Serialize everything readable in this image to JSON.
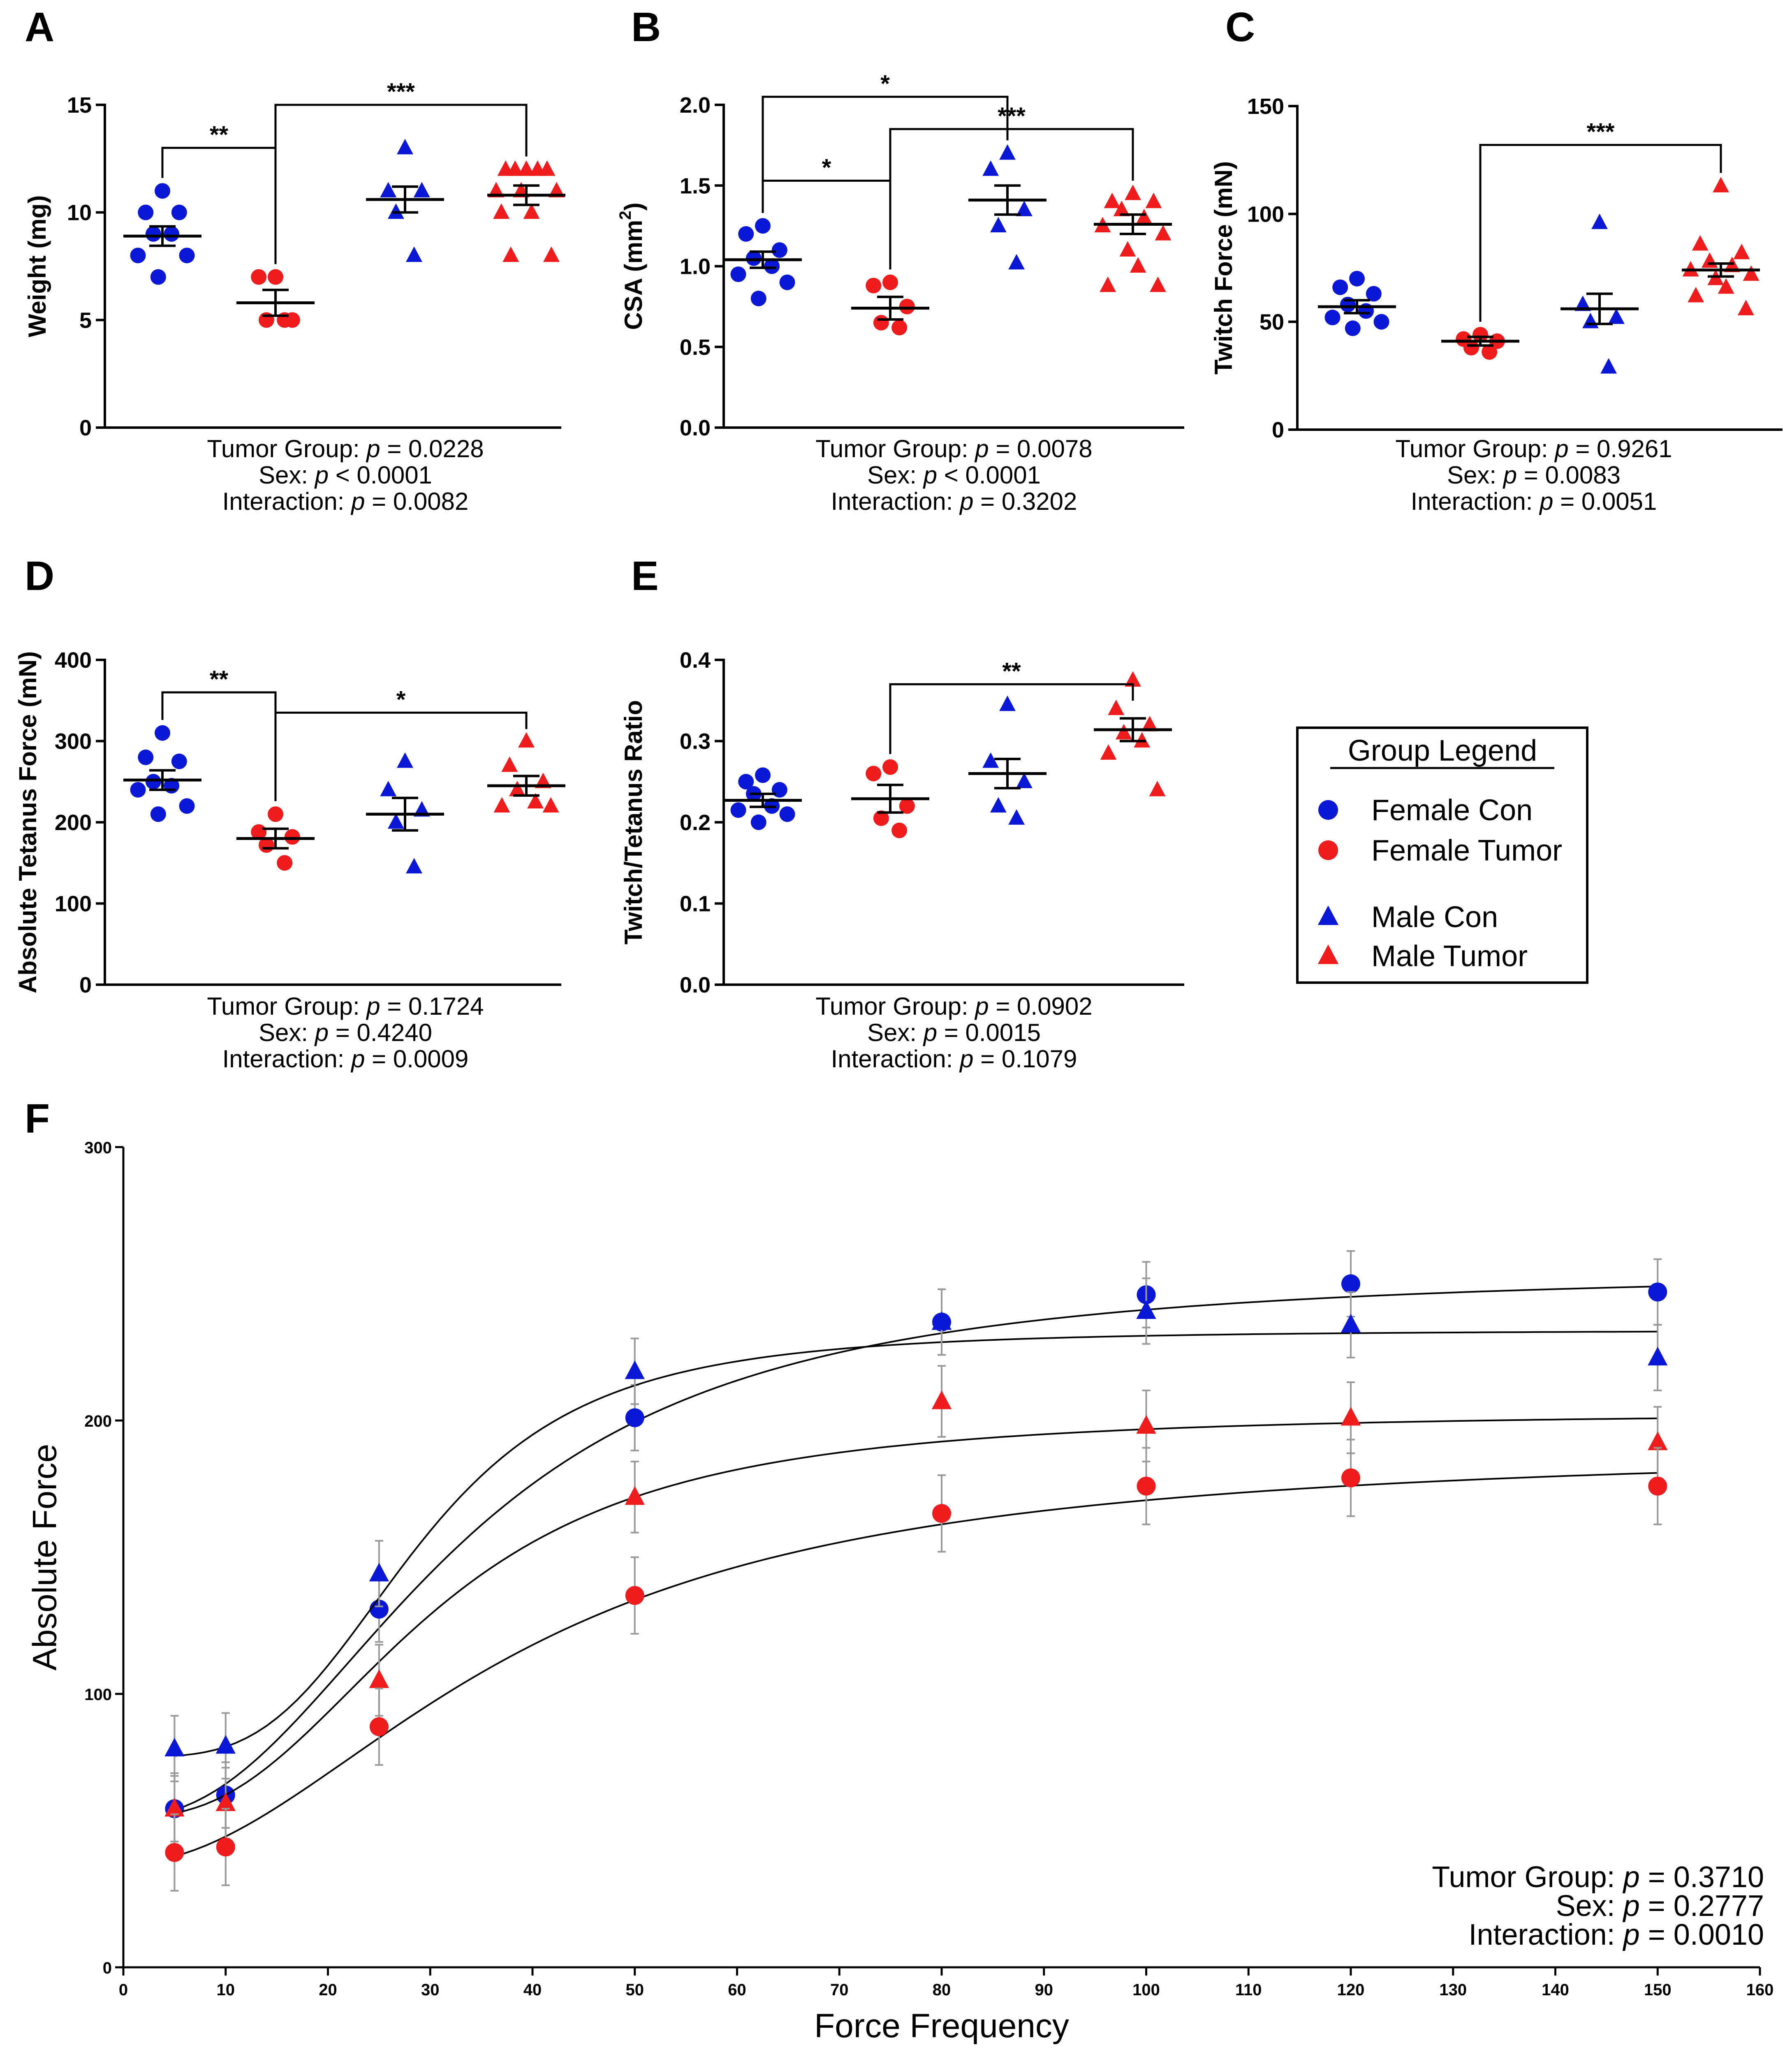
{
  "colors": {
    "female_con": "#0a18d6",
    "female_tumor": "#ee1c1c",
    "male_con": "#0a18d6",
    "male_tumor": "#ee1c1c",
    "axis": "#000000",
    "errbar_F": "#999999"
  },
  "legend": {
    "title": "Group Legend",
    "items": [
      {
        "label": "Female Con",
        "marker": "circle",
        "color": "#0a18d6"
      },
      {
        "label": "Female Tumor",
        "marker": "circle",
        "color": "#ee1c1c"
      },
      {
        "label": "Male Con",
        "marker": "triangle",
        "color": "#0a18d6"
      },
      {
        "label": "Male Tumor",
        "marker": "triangle",
        "color": "#ee1c1c"
      }
    ]
  },
  "chart_data": [
    {
      "panel": "A",
      "type": "scatter",
      "ylabel": "Weight (mg)",
      "ylim": [
        0,
        15
      ],
      "yticks": [
        {
          "v": 0,
          "t": "0"
        },
        {
          "v": 5,
          "t": "5"
        },
        {
          "v": 10,
          "t": "10"
        },
        {
          "v": 15,
          "t": "15"
        }
      ],
      "groups": [
        {
          "name": "Female Con",
          "marker": "circle",
          "color": "#0a18d6",
          "values": [
            11,
            10,
            10,
            9,
            9,
            8,
            8,
            7
          ],
          "mean": 8.9,
          "sem": 0.45
        },
        {
          "name": "Female Tumor",
          "marker": "circle",
          "color": "#ee1c1c",
          "values": [
            7,
            7,
            5,
            5,
            5
          ],
          "mean": 5.8,
          "sem": 0.6
        },
        {
          "name": "Male Con",
          "marker": "triangle",
          "color": "#0a18d6",
          "values": [
            13,
            11,
            11,
            10,
            8
          ],
          "mean": 10.6,
          "sem": 0.6
        },
        {
          "name": "Male Tumor",
          "marker": "triangle",
          "color": "#ee1c1c",
          "values": [
            12,
            12,
            12,
            12,
            12,
            11,
            11,
            11,
            10,
            10,
            8,
            8
          ],
          "mean": 10.8,
          "sem": 0.45
        }
      ],
      "brackets": [
        {
          "from": 0,
          "to": 1,
          "y": 13,
          "label": "**"
        },
        {
          "from": 1,
          "to": 3,
          "y": 15,
          "label": "***"
        }
      ],
      "stats": [
        {
          "pre": "Tumor Group: ",
          "p": "p",
          "post": " = 0.0228"
        },
        {
          "pre": "Sex: ",
          "p": "p",
          "post": " < 0.0001"
        },
        {
          "pre": "Interaction: ",
          "p": "p",
          "post": " = 0.0082"
        }
      ]
    },
    {
      "panel": "B",
      "type": "scatter",
      "ylabel": "CSA (mm",
      "ylabel_sup": "2",
      "ylabel_end": ")",
      "ylim": [
        0,
        2.0
      ],
      "yticks": [
        {
          "v": 0,
          "t": "0.0"
        },
        {
          "v": 0.5,
          "t": "0.5"
        },
        {
          "v": 1.0,
          "t": "1.0"
        },
        {
          "v": 1.5,
          "t": "1.5"
        },
        {
          "v": 2.0,
          "t": "2.0"
        }
      ],
      "groups": [
        {
          "name": "Female Con",
          "marker": "circle",
          "color": "#0a18d6",
          "values": [
            1.25,
            1.2,
            1.1,
            1.05,
            1.0,
            0.95,
            0.9,
            0.8
          ],
          "mean": 1.04,
          "sem": 0.05
        },
        {
          "name": "Female Tumor",
          "marker": "circle",
          "color": "#ee1c1c",
          "values": [
            0.9,
            0.88,
            0.75,
            0.65,
            0.62
          ],
          "mean": 0.74,
          "sem": 0.07
        },
        {
          "name": "Male Con",
          "marker": "triangle",
          "color": "#0a18d6",
          "values": [
            1.7,
            1.6,
            1.35,
            1.25,
            1.02
          ],
          "mean": 1.41,
          "sem": 0.09
        },
        {
          "name": "Male Tumor",
          "marker": "triangle",
          "color": "#ee1c1c",
          "values": [
            1.45,
            1.4,
            1.4,
            1.35,
            1.3,
            1.25,
            1.2,
            1.1,
            1.0,
            0.88,
            0.88
          ],
          "mean": 1.26,
          "sem": 0.06
        }
      ],
      "brackets": [
        {
          "from": 0,
          "to": 2,
          "y": 2.05,
          "label": "*"
        },
        {
          "from": 0,
          "to": 1,
          "y": 1.53,
          "label": "*"
        },
        {
          "from": 1,
          "to": 3,
          "y": 1.85,
          "label": "***"
        }
      ],
      "stats": [
        {
          "pre": "Tumor Group: ",
          "p": "p",
          "post": " = 0.0078"
        },
        {
          "pre": "Sex: ",
          "p": "p",
          "post": " < 0.0001"
        },
        {
          "pre": "Interaction: ",
          "p": "p",
          "post": " = 0.3202"
        }
      ]
    },
    {
      "panel": "C",
      "type": "scatter",
      "ylabel": "Twitch Force (mN)",
      "ylim": [
        0,
        150
      ],
      "yticks": [
        {
          "v": 0,
          "t": "0"
        },
        {
          "v": 50,
          "t": "50"
        },
        {
          "v": 100,
          "t": "100"
        },
        {
          "v": 150,
          "t": "150"
        }
      ],
      "groups": [
        {
          "name": "Female Con",
          "marker": "circle",
          "color": "#0a18d6",
          "values": [
            70,
            66,
            63,
            58,
            55,
            52,
            50,
            47
          ],
          "mean": 57,
          "sem": 3
        },
        {
          "name": "Female Tumor",
          "marker": "circle",
          "color": "#ee1c1c",
          "values": [
            44,
            42,
            41,
            38,
            36
          ],
          "mean": 41,
          "sem": 2
        },
        {
          "name": "Male Con",
          "marker": "triangle",
          "color": "#0a18d6",
          "values": [
            96,
            58,
            52,
            50,
            29
          ],
          "mean": 56,
          "sem": 7
        },
        {
          "name": "Male Tumor",
          "marker": "triangle",
          "color": "#ee1c1c",
          "values": [
            113,
            86,
            82,
            78,
            76,
            74,
            72,
            70,
            66,
            62,
            56
          ],
          "mean": 74,
          "sem": 3
        }
      ],
      "brackets": [
        {
          "from": 1,
          "to": 3,
          "y": 132,
          "label": "***"
        }
      ],
      "stats": [
        {
          "pre": "Tumor Group: ",
          "p": "p",
          "post": " = 0.9261"
        },
        {
          "pre": "Sex: ",
          "p": "p",
          "post": " = 0.0083"
        },
        {
          "pre": "Interaction: ",
          "p": "p",
          "post": " = 0.0051"
        }
      ]
    },
    {
      "panel": "D",
      "type": "scatter",
      "ylabel": "Absolute Tetanus Force (mN)",
      "ylim": [
        0,
        400
      ],
      "yticks": [
        {
          "v": 0,
          "t": "0"
        },
        {
          "v": 100,
          "t": "100"
        },
        {
          "v": 200,
          "t": "200"
        },
        {
          "v": 300,
          "t": "300"
        },
        {
          "v": 400,
          "t": "400"
        }
      ],
      "groups": [
        {
          "name": "Female Con",
          "marker": "circle",
          "color": "#0a18d6",
          "values": [
            310,
            280,
            275,
            250,
            245,
            240,
            220,
            210
          ],
          "mean": 252,
          "sem": 12
        },
        {
          "name": "Female Tumor",
          "marker": "circle",
          "color": "#ee1c1c",
          "values": [
            210,
            188,
            182,
            172,
            150
          ],
          "mean": 180,
          "sem": 12
        },
        {
          "name": "Male Con",
          "marker": "triangle",
          "color": "#0a18d6",
          "values": [
            275,
            240,
            215,
            200,
            145
          ],
          "mean": 210,
          "sem": 20
        },
        {
          "name": "Male Tumor",
          "marker": "triangle",
          "color": "#ee1c1c",
          "values": [
            300,
            270,
            250,
            240,
            225,
            220,
            220
          ],
          "mean": 245,
          "sem": 12
        }
      ],
      "brackets": [
        {
          "from": 0,
          "to": 1,
          "y": 360,
          "label": "**"
        },
        {
          "from": 1,
          "to": 3,
          "y": 335,
          "label": "*"
        }
      ],
      "stats": [
        {
          "pre": "Tumor Group: ",
          "p": "p",
          "post": " = 0.1724"
        },
        {
          "pre": "Sex: ",
          "p": "p",
          "post": " = 0.4240"
        },
        {
          "pre": "Interaction: ",
          "p": "p",
          "post": " = 0.0009"
        }
      ]
    },
    {
      "panel": "E",
      "type": "scatter",
      "ylabel": "Twitch/Tetanus Ratio",
      "ylim": [
        0,
        0.4
      ],
      "yticks": [
        {
          "v": 0,
          "t": "0.0"
        },
        {
          "v": 0.1,
          "t": "0.1"
        },
        {
          "v": 0.2,
          "t": "0.2"
        },
        {
          "v": 0.3,
          "t": "0.3"
        },
        {
          "v": 0.4,
          "t": "0.4"
        }
      ],
      "groups": [
        {
          "name": "Female Con",
          "marker": "circle",
          "color": "#0a18d6",
          "values": [
            0.258,
            0.25,
            0.24,
            0.235,
            0.22,
            0.215,
            0.21,
            0.2
          ],
          "mean": 0.227,
          "sem": 0.008
        },
        {
          "name": "Female Tumor",
          "marker": "circle",
          "color": "#ee1c1c",
          "values": [
            0.268,
            0.26,
            0.22,
            0.205,
            0.19
          ],
          "mean": 0.229,
          "sem": 0.017
        },
        {
          "name": "Male Con",
          "marker": "triangle",
          "color": "#0a18d6",
          "values": [
            0.345,
            0.275,
            0.25,
            0.22,
            0.205
          ],
          "mean": 0.26,
          "sem": 0.018
        },
        {
          "name": "Male Tumor",
          "marker": "triangle",
          "color": "#ee1c1c",
          "values": [
            0.375,
            0.34,
            0.32,
            0.31,
            0.3,
            0.285,
            0.24
          ],
          "mean": 0.314,
          "sem": 0.014
        }
      ],
      "brackets": [
        {
          "from": 1,
          "to": 3,
          "y": 0.37,
          "label": "**"
        }
      ],
      "stats": [
        {
          "pre": "Tumor Group: ",
          "p": "p",
          "post": " = 0.0902"
        },
        {
          "pre": "Sex: ",
          "p": "p",
          "post": " = 0.0015"
        },
        {
          "pre": "Interaction: ",
          "p": "p",
          "post": " = 0.1079"
        }
      ]
    },
    {
      "panel": "F",
      "type": "line",
      "xlabel": "Force Frequency",
      "ylabel": "Absolute Force",
      "xlim": [
        0,
        160
      ],
      "ylim": [
        0,
        300
      ],
      "xticks": [
        0,
        10,
        20,
        30,
        40,
        50,
        60,
        70,
        80,
        90,
        100,
        110,
        120,
        130,
        140,
        150,
        160
      ],
      "yticks": [
        0,
        100,
        200,
        300
      ],
      "x": [
        5,
        10,
        25,
        50,
        80,
        100,
        120,
        150
      ],
      "series": [
        {
          "name": "Female Con",
          "marker": "circle",
          "color": "#0a18d6",
          "values": [
            58,
            63,
            131,
            201,
            236,
            246,
            250,
            247
          ],
          "err": 12,
          "fit": {
            "bottom": 55,
            "top": 255,
            "ec50": 33,
            "hill": 2.3
          }
        },
        {
          "name": "Male Con",
          "marker": "triangle",
          "color": "#0a18d6",
          "values": [
            80,
            81,
            144,
            218,
            236,
            240,
            235,
            223
          ],
          "err": 12,
          "fit": {
            "bottom": 77,
            "top": 233,
            "ec50": 29,
            "hill": 3.5
          }
        },
        {
          "name": "Male Tumor",
          "marker": "triangle",
          "color": "#ee1c1c",
          "values": [
            58,
            60,
            105,
            172,
            207,
            198,
            201,
            192
          ],
          "err": 13,
          "fit": {
            "bottom": 55,
            "top": 203,
            "ec50": 30,
            "hill": 2.6
          }
        },
        {
          "name": "Female Tumor",
          "marker": "circle",
          "color": "#ee1c1c",
          "values": [
            42,
            44,
            88,
            136,
            166,
            176,
            179,
            176
          ],
          "err": 14,
          "fit": {
            "bottom": 38,
            "top": 190,
            "ec50": 38,
            "hill": 2.0
          }
        }
      ],
      "stats": [
        {
          "pre": "Tumor Group: ",
          "p": "p",
          "post": " = 0.3710"
        },
        {
          "pre": "Sex: ",
          "p": "p",
          "post": " = 0.2777"
        },
        {
          "pre": "Interaction: ",
          "p": "p",
          "post": " = 0.0010"
        }
      ]
    }
  ]
}
